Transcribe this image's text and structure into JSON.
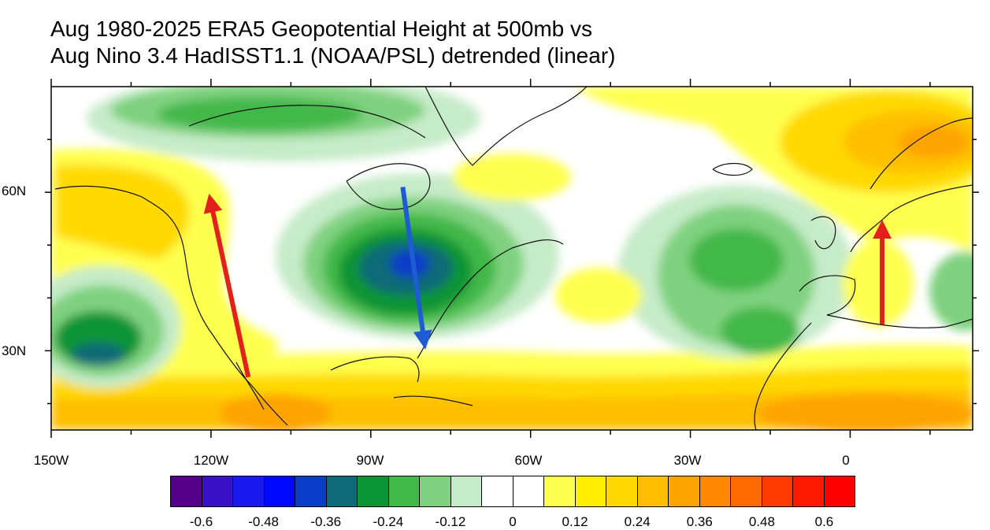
{
  "title_line1": "Aug 1980-2025 ERA5 Geopotential Height at 500mb vs",
  "title_line2": "Aug Nino 3.4 HadISST1.1 (NOAA/PSL) detrended (linear)",
  "lon_labels": [
    "150W",
    "120W",
    "90W",
    "60W",
    "30W",
    "0"
  ],
  "lat_labels": [
    "60N",
    "30N"
  ],
  "colorbar": {
    "labels": [
      "-0.6",
      "-0.48",
      "-0.36",
      "-0.24",
      "-0.12",
      "0",
      "0.12",
      "0.24",
      "0.36",
      "0.48",
      "0.6"
    ],
    "colors": [
      "#55008a",
      "#3a10c8",
      "#1a1aef",
      "#0008ff",
      "#0a3ec8",
      "#0d6a76",
      "#0b9434",
      "#42b84a",
      "#7fd17f",
      "#c6ebc8",
      "#ffffff",
      "#ffffff",
      "#ffff4d",
      "#ffee00",
      "#ffd900",
      "#ffbf00",
      "#ffa300",
      "#ff8800",
      "#ff6a00",
      "#ff3a00",
      "#ff1a00",
      "#ff0000"
    ]
  },
  "map_extent": {
    "lon_min": -150,
    "lon_max": 23,
    "lat_min": 15,
    "lat_max": 80
  },
  "arrows": [
    {
      "name": "arrow-pacific-northwest",
      "color": "#e3201b",
      "from": [
        -113,
        25
      ],
      "to": [
        -120,
        58
      ]
    },
    {
      "name": "arrow-eastern-north-america",
      "color": "#1e5cd6",
      "from": [
        -84,
        61
      ],
      "to": [
        -80,
        32
      ]
    },
    {
      "name": "arrow-western-europe",
      "color": "#e3201b",
      "from": [
        6,
        35
      ],
      "to": [
        6,
        53
      ]
    }
  ]
}
